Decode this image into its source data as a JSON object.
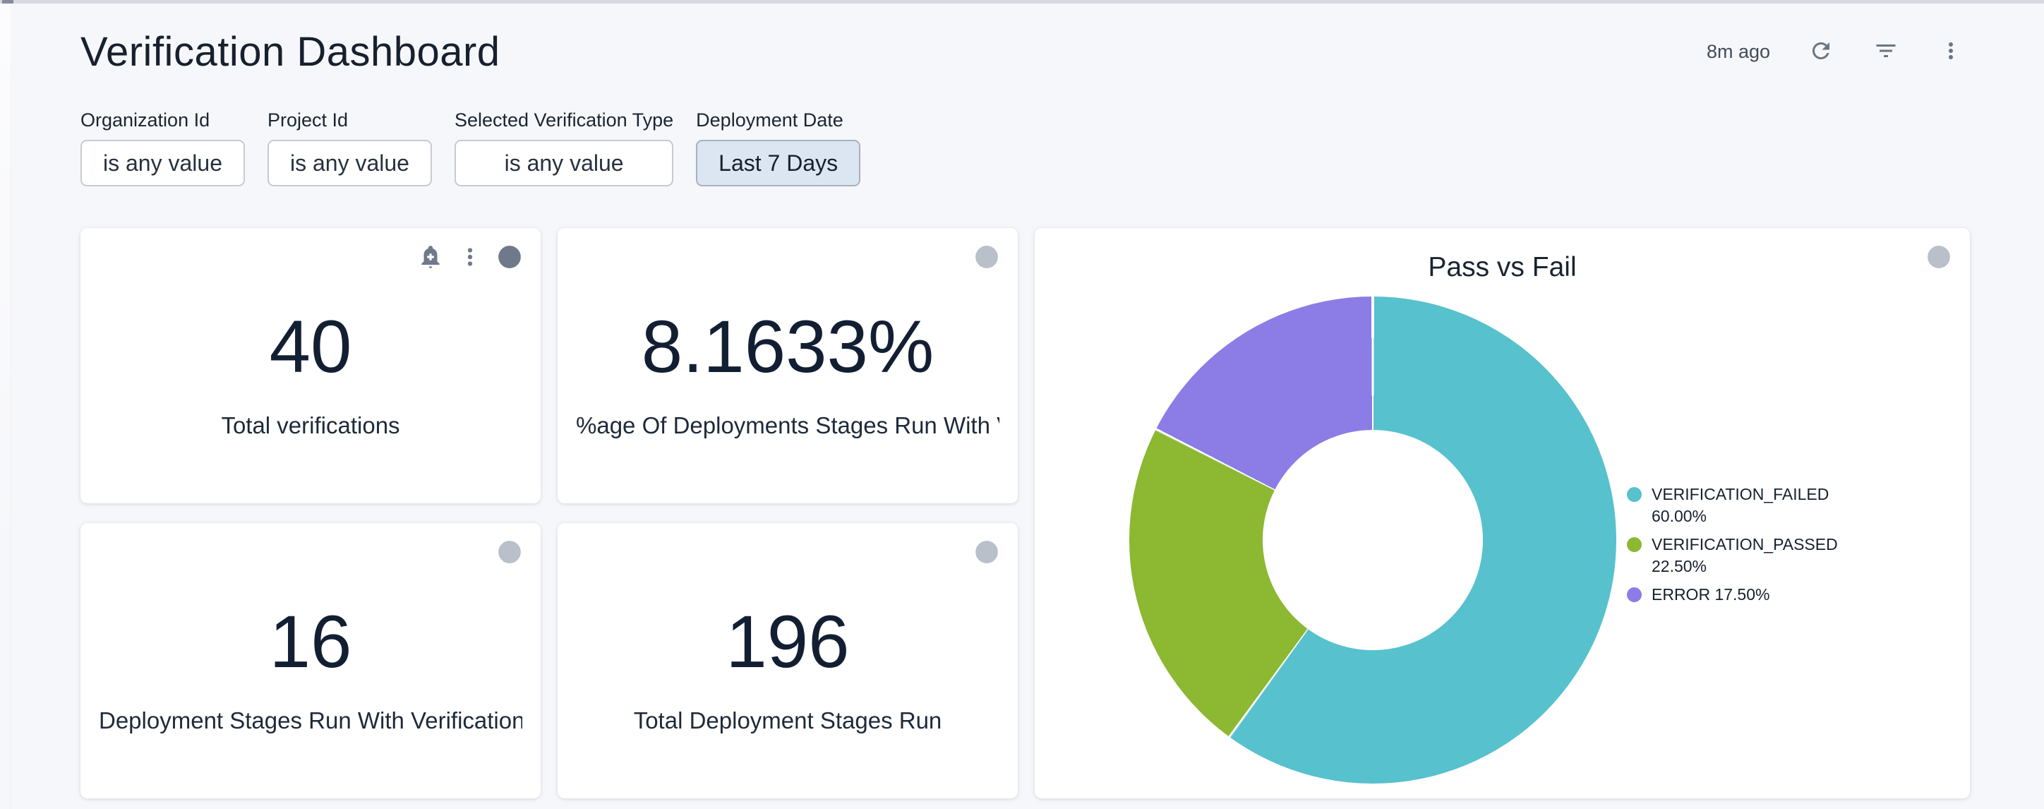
{
  "header": {
    "title": "Verification Dashboard",
    "last_refresh": "8m ago"
  },
  "filters": [
    {
      "label": "Organization Id",
      "value": "is any value",
      "active": false
    },
    {
      "label": "Project Id",
      "value": "is any value",
      "active": false
    },
    {
      "label": "Selected Verification Type",
      "value": "is any value",
      "active": false
    },
    {
      "label": "Deployment Date",
      "value": "Last 7 Days",
      "active": true
    }
  ],
  "tiles": [
    {
      "value": "40",
      "label": "Total verifications"
    },
    {
      "value": "8.1633%",
      "label": "%age Of Deployments Stages Run With V…"
    },
    {
      "value": "16",
      "label": "Deployment Stages Run With Verification"
    },
    {
      "value": "196",
      "label": "Total Deployment Stages Run"
    }
  ],
  "chart_data": {
    "type": "pie",
    "subtype": "donut",
    "title": "Pass vs Fail",
    "legend_position": "right",
    "value_format": "percent",
    "start_angle_deg": 0,
    "series": [
      {
        "name": "VERIFICATION_FAILED",
        "value": 60.0,
        "color": "#57c1cd"
      },
      {
        "name": "VERIFICATION_PASSED",
        "value": 22.5,
        "color": "#8cb832"
      },
      {
        "name": "ERROR",
        "value": 17.5,
        "color": "#8b7ce6"
      }
    ]
  },
  "colors": {
    "page_background": "#f6f7fa",
    "card_background": "#ffffff",
    "top_strip": "#d7d9e2",
    "primary_text": "#16202e",
    "icon_dark": "#6e7a8a",
    "icon_light": "#b9c0ca",
    "active_filter_bg": "#dbe6f2"
  }
}
